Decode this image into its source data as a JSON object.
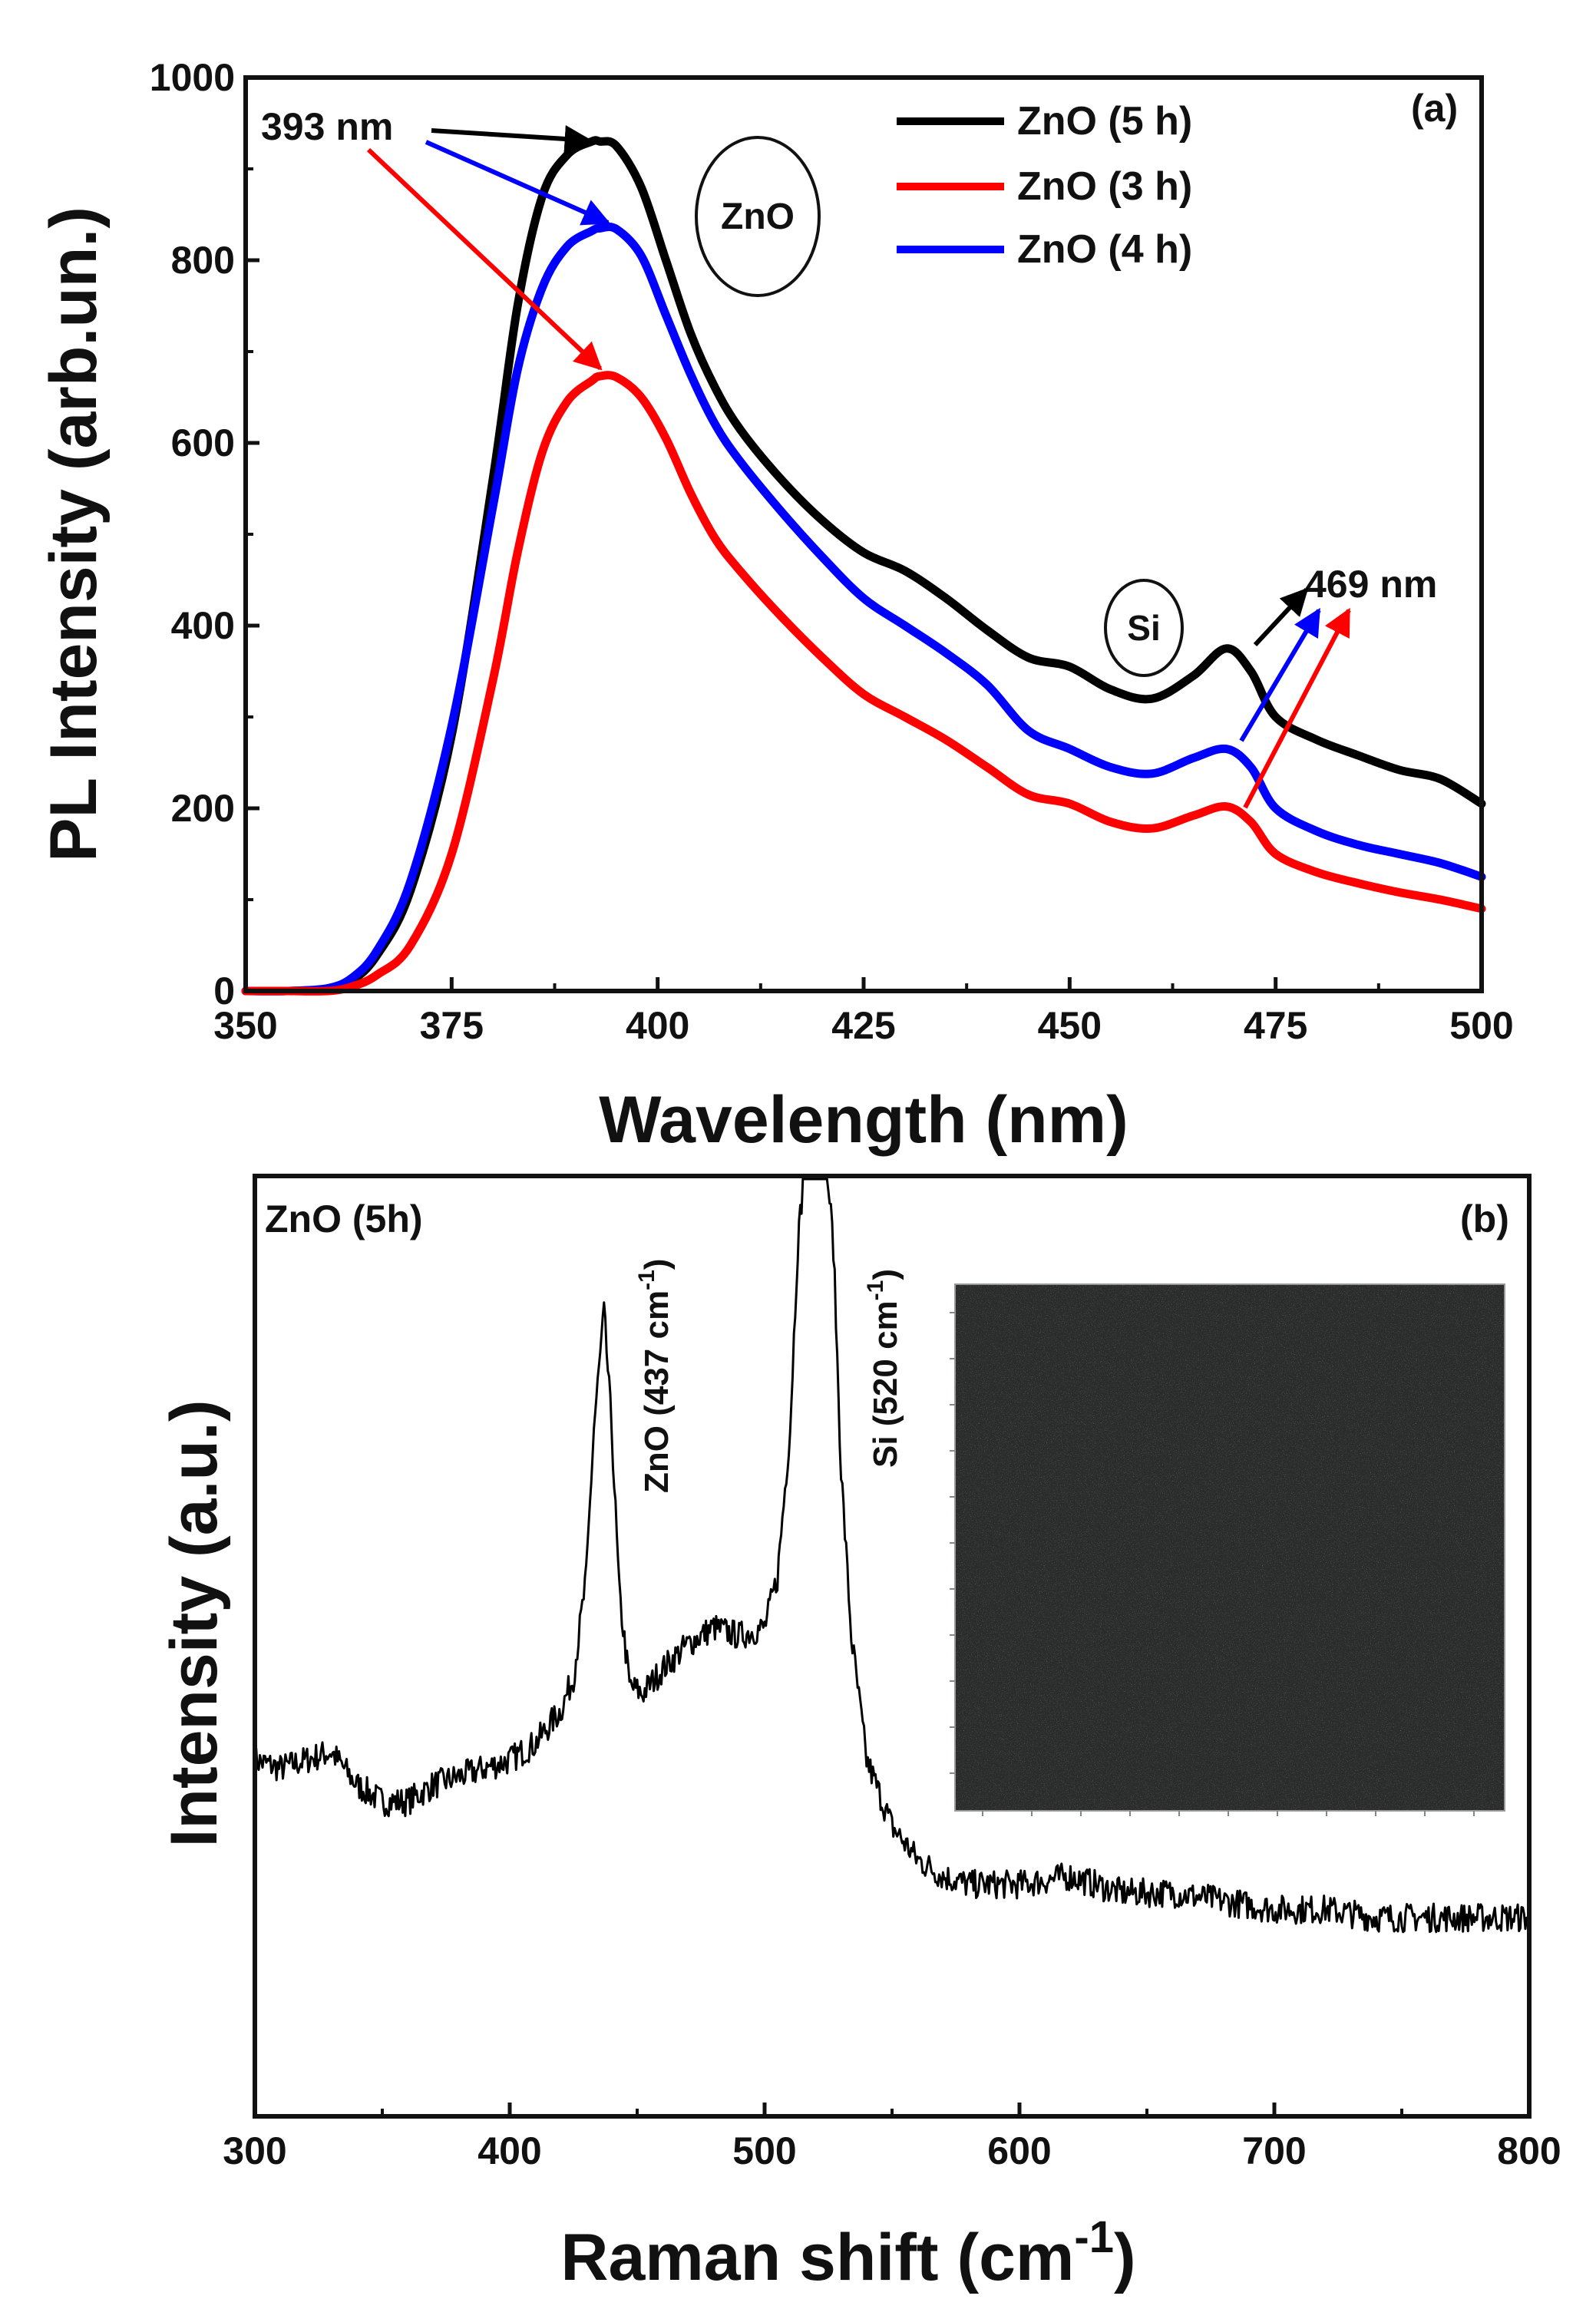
{
  "chart_data": [
    {
      "panel_label": "(a)",
      "type": "line",
      "xlabel": "Wavelength (nm)",
      "ylabel": "PL Intensity (arb.un.)",
      "xlim": [
        350,
        500
      ],
      "ylim": [
        0,
        1000
      ],
      "xticks": [
        350,
        375,
        400,
        425,
        450,
        475,
        500
      ],
      "yticks": [
        0,
        200,
        400,
        600,
        800,
        1000
      ],
      "legend_position": "top-right",
      "x": [
        350,
        355,
        360,
        363,
        366,
        370,
        375,
        380,
        383,
        386,
        389,
        392,
        393,
        395,
        398,
        401,
        404,
        407,
        410,
        415,
        420,
        425,
        430,
        435,
        440,
        445,
        450,
        455,
        460,
        465,
        469,
        472,
        475,
        480,
        485,
        490,
        495,
        500
      ],
      "series": [
        {
          "name": "ZnO (5 h)",
          "color": "#000000",
          "values": [
            0,
            0,
            2,
            12,
            40,
            110,
            280,
            560,
            750,
            870,
            915,
            930,
            930,
            925,
            880,
            800,
            720,
            660,
            615,
            560,
            515,
            480,
            460,
            430,
            395,
            365,
            355,
            330,
            320,
            345,
            375,
            350,
            300,
            275,
            258,
            242,
            232,
            205
          ]
        },
        {
          "name": "ZnO (3 h)",
          "color": "#ff0000",
          "values": [
            0,
            0,
            0,
            5,
            18,
            50,
            150,
            340,
            480,
            590,
            645,
            668,
            673,
            672,
            650,
            605,
            545,
            495,
            460,
            410,
            365,
            325,
            300,
            275,
            245,
            215,
            205,
            185,
            178,
            192,
            202,
            185,
            150,
            130,
            118,
            108,
            100,
            90
          ]
        },
        {
          "name": "ZnO (4 h)",
          "color": "#0000ff",
          "values": [
            0,
            0,
            3,
            15,
            45,
            120,
            290,
            530,
            680,
            770,
            815,
            832,
            835,
            834,
            805,
            740,
            675,
            620,
            580,
            525,
            475,
            430,
            400,
            370,
            335,
            285,
            265,
            245,
            238,
            255,
            265,
            245,
            200,
            175,
            160,
            150,
            140,
            125
          ]
        }
      ],
      "annotations": [
        {
          "text": "393 nm"
        },
        {
          "text": "469 nm"
        },
        {
          "text": "ZnO"
        },
        {
          "text": "Si"
        }
      ]
    },
    {
      "panel_label": "(b)",
      "type": "line",
      "xlabel": "Raman shift (cm",
      "xlabel_sup": "-1",
      "xlabel_end": ")",
      "ylabel": "Intensity (a.u.)",
      "xlim": [
        300,
        800
      ],
      "xticks": [
        300,
        400,
        500,
        600,
        700,
        800
      ],
      "y_ticks_shown": false,
      "series": [
        {
          "name": "ZnO (5h)",
          "color": "#000000",
          "x": [
            300,
            310,
            320,
            330,
            340,
            350,
            360,
            370,
            380,
            390,
            400,
            410,
            420,
            425,
            430,
            433,
            437,
            440,
            443,
            447,
            452,
            460,
            470,
            480,
            490,
            500,
            505,
            510,
            513,
            516,
            518,
            520,
            522,
            524,
            527,
            530,
            534,
            540,
            550,
            560,
            570,
            580,
            600,
            620,
            640,
            660,
            680,
            700,
            720,
            740,
            760,
            780,
            800
          ],
          "values": [
            0.3,
            0.29,
            0.3,
            0.31,
            0.27,
            0.25,
            0.25,
            0.27,
            0.28,
            0.29,
            0.3,
            0.32,
            0.36,
            0.4,
            0.52,
            0.7,
            0.84,
            0.7,
            0.5,
            0.39,
            0.38,
            0.41,
            0.44,
            0.46,
            0.45,
            0.46,
            0.52,
            0.7,
            0.92,
            1.03,
            1.03,
            1.03,
            1.03,
            1.03,
            0.92,
            0.65,
            0.45,
            0.3,
            0.22,
            0.18,
            0.16,
            0.15,
            0.15,
            0.16,
            0.14,
            0.14,
            0.13,
            0.12,
            0.12,
            0.11,
            0.11,
            0.11,
            0.11
          ]
        }
      ],
      "peak_labels": [
        {
          "text": "ZnO (437 cm",
          "sup": "-1",
          "end": ")",
          "x": 437
        },
        {
          "text": "Si (520 cm",
          "sup": "-1",
          "end": ")",
          "x": 520
        }
      ],
      "inset": {
        "type": "optical-micrograph",
        "tone": "#2a2b2b"
      }
    }
  ]
}
